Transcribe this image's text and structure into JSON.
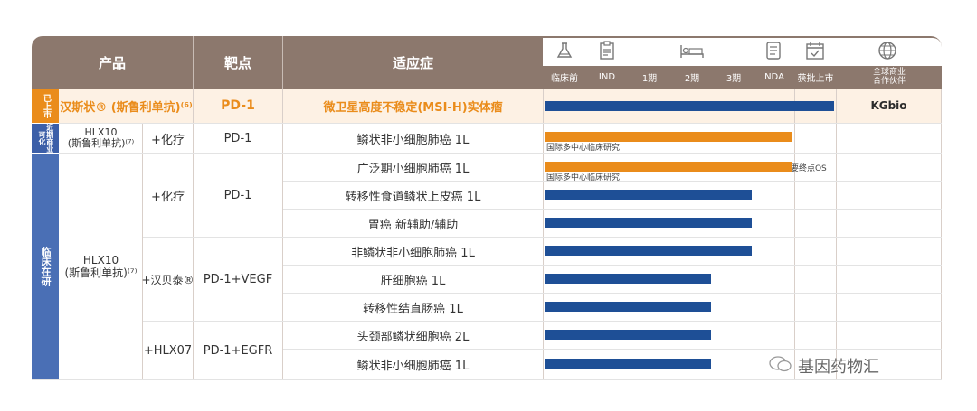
{
  "header": {
    "product": "产品",
    "target": "靶点",
    "indication": "适应症",
    "phases": [
      "临床前",
      "IND",
      "1期",
      "2期",
      "3期",
      "NDA",
      "获批上市",
      "全球商业\n合作伙伴"
    ]
  },
  "groups": {
    "marketed": "已上市",
    "near": "近期商业可化",
    "clinical": "临床在研"
  },
  "rows": {
    "r0": {
      "product": "汉斯状® (斯鲁利单抗)⁽⁶⁾",
      "target": "PD-1",
      "indication": "微卫星高度不稳定(MSI-H)实体瘤",
      "partner": "KGbio"
    },
    "r1": {
      "product": "HLX10\n(斯鲁利单抗)⁽⁷⁾",
      "combo": "+化疗",
      "target": "PD-1",
      "indication": "鳞状非小细胞肺癌 1L",
      "note": "国际多中心临床研究"
    },
    "r2": {
      "indication": "广泛期小细胞肺癌 1L",
      "note": "国际多中心临床研究",
      "star_note": "达到主要终点OS"
    },
    "r3": {
      "indication": "转移性食道鳞状上皮癌 1L"
    },
    "r4": {
      "indication": "胃癌 新辅助/辅助"
    },
    "r5": {
      "indication": "非鳞状非小细胞肺癌 1L"
    },
    "r6": {
      "indication": "肝细胞癌 1L"
    },
    "r7": {
      "indication": "转移性结直肠癌 1L"
    },
    "r8": {
      "indication": "头颈部鳞状细胞癌 2L"
    },
    "r9": {
      "indication": "鳞状非小细胞肺癌 1L"
    }
  },
  "clinical_product": "HLX10\n(斯鲁利单抗)⁽⁷⁾",
  "combos": {
    "c1": {
      "combo": "+化疗",
      "target": "PD-1"
    },
    "c2": {
      "combo": "+汉贝泰®",
      "target": "PD-1+VEGF"
    },
    "c3": {
      "combo": "+HLX07",
      "target": "PD-1+EGFR"
    }
  },
  "watermark": "基因药物汇",
  "chart_data": {
    "type": "bar",
    "stages": [
      "临床前",
      "IND",
      "1期",
      "2期",
      "3期",
      "NDA",
      "获批上市"
    ],
    "series": [
      {
        "indication": "微卫星高度不稳定(MSI-H)实体瘤",
        "reached": "获批上市",
        "color": "#1e4f96"
      },
      {
        "indication": "鳞状非小细胞肺癌 1L",
        "reached": "NDA",
        "color": "#ea8c1b"
      },
      {
        "indication": "广泛期小细胞肺癌 1L",
        "reached": "NDA",
        "color": "#ea8c1b"
      },
      {
        "indication": "转移性食道鳞状上皮癌 1L",
        "reached": "3期",
        "color": "#1e4f96"
      },
      {
        "indication": "胃癌 新辅助/辅助",
        "reached": "3期",
        "color": "#1e4f96"
      },
      {
        "indication": "非鳞状非小细胞肺癌 1L",
        "reached": "3期",
        "color": "#1e4f96"
      },
      {
        "indication": "肝细胞癌 1L",
        "reached": "2期",
        "color": "#1e4f96"
      },
      {
        "indication": "转移性结直肠癌 1L",
        "reached": "2期",
        "color": "#1e4f96"
      },
      {
        "indication": "头颈部鳞状细胞癌 2L",
        "reached": "2期",
        "color": "#1e4f96"
      },
      {
        "indication": "鳞状非小细胞肺癌 1L",
        "reached": "2期",
        "color": "#1e4f96"
      }
    ]
  }
}
